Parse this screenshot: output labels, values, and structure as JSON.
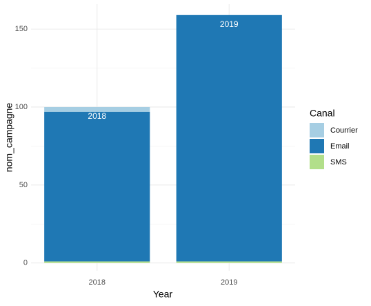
{
  "chart_data": {
    "type": "stacked_bar",
    "x_label": "Year",
    "y_label": "nom_campagne",
    "categories": [
      "2018",
      "2019"
    ],
    "series": [
      {
        "name": "SMS",
        "color": "#b2df8a",
        "values": [
          1,
          1
        ]
      },
      {
        "name": "Email",
        "color": "#1f78b4",
        "values": [
          96,
          158
        ]
      },
      {
        "name": "Courrier",
        "color": "#a6cee3",
        "values": [
          3,
          0
        ]
      }
    ],
    "legend_title": "Canal",
    "legend_order": [
      2,
      1,
      0
    ],
    "legend_position": "right",
    "ylim": [
      -5,
      166
    ],
    "yticks": [
      0,
      50,
      100,
      150
    ],
    "minor_yticks": [
      25,
      75,
      125
    ],
    "grid": true
  }
}
